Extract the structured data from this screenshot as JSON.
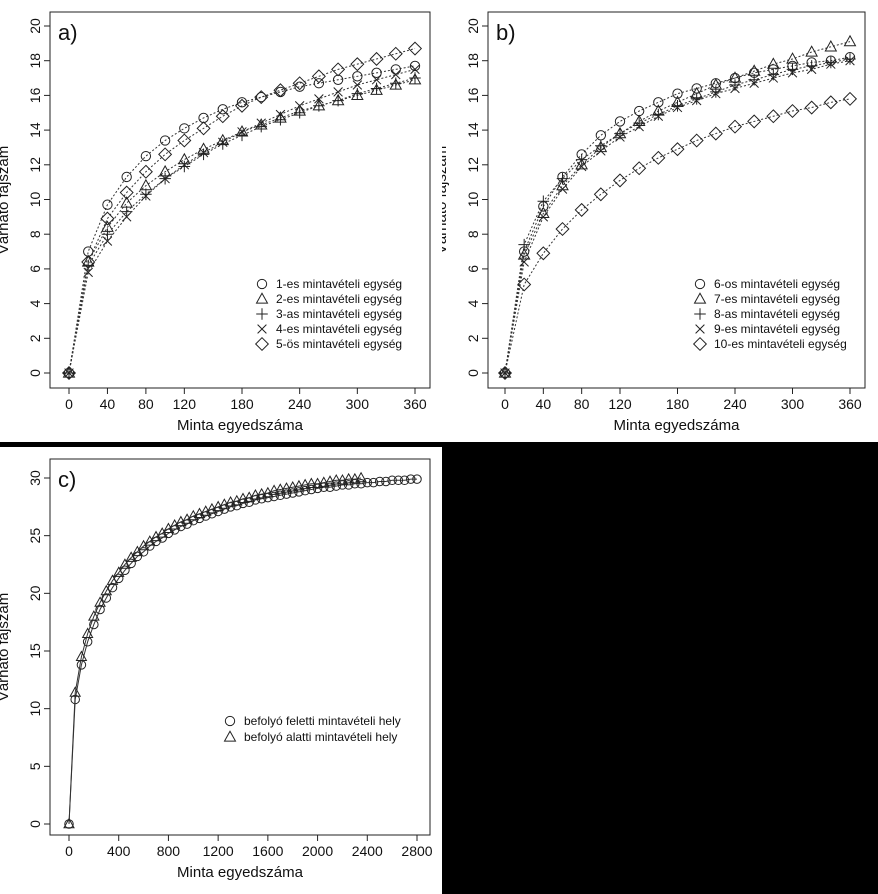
{
  "chart_data": [
    {
      "type": "scatter",
      "panel_label": "a)",
      "xlabel": "Minta egyedszáma",
      "ylabel": "Várható fajszám",
      "xlim": [
        0,
        360
      ],
      "ylim": [
        0,
        20
      ],
      "xticks": [
        0,
        40,
        80,
        120,
        180,
        240,
        300,
        360
      ],
      "yticks": [
        0,
        2,
        4,
        6,
        8,
        10,
        12,
        14,
        16,
        18,
        20
      ],
      "grid": false,
      "legend_position": "bottom-right",
      "x": [
        0,
        20,
        40,
        60,
        80,
        100,
        120,
        140,
        160,
        180,
        200,
        220,
        240,
        260,
        280,
        300,
        320,
        340,
        360
      ],
      "series": [
        {
          "name": "1-es mintavételi egység",
          "marker": "circle",
          "values": [
            0,
            7.0,
            9.7,
            11.3,
            12.5,
            13.4,
            14.1,
            14.7,
            15.2,
            15.6,
            15.9,
            16.2,
            16.5,
            16.7,
            16.9,
            17.1,
            17.3,
            17.5,
            17.7
          ]
        },
        {
          "name": "2-es mintavételi egység",
          "marker": "triangle",
          "values": [
            0,
            6.4,
            8.4,
            9.8,
            10.8,
            11.6,
            12.3,
            12.9,
            13.4,
            13.9,
            14.3,
            14.7,
            15.1,
            15.4,
            15.7,
            16.0,
            16.3,
            16.6,
            16.9
          ]
        },
        {
          "name": "3-as mintavételi egység",
          "marker": "plus",
          "values": [
            0,
            6.2,
            8.0,
            9.3,
            10.3,
            11.2,
            11.9,
            12.6,
            13.2,
            13.7,
            14.2,
            14.6,
            15.0,
            15.4,
            15.7,
            16.1,
            16.4,
            16.7,
            17.0
          ]
        },
        {
          "name": "4-es mintavételi egység",
          "marker": "cross",
          "values": [
            0,
            5.8,
            7.6,
            9.0,
            10.2,
            11.2,
            12.0,
            12.7,
            13.3,
            13.9,
            14.4,
            14.9,
            15.4,
            15.8,
            16.2,
            16.6,
            16.9,
            17.2,
            17.5
          ]
        },
        {
          "name": "5-ös mintavételi egység",
          "marker": "diamond",
          "values": [
            0,
            6.4,
            8.9,
            10.4,
            11.6,
            12.6,
            13.4,
            14.1,
            14.8,
            15.4,
            15.9,
            16.3,
            16.7,
            17.1,
            17.5,
            17.8,
            18.1,
            18.4,
            18.7
          ]
        }
      ]
    },
    {
      "type": "scatter",
      "panel_label": "b)",
      "xlabel": "Minta egyedszáma",
      "ylabel": "Várható fajszám",
      "xlim": [
        0,
        360
      ],
      "ylim": [
        0,
        20
      ],
      "xticks": [
        0,
        40,
        80,
        120,
        180,
        240,
        300,
        360
      ],
      "yticks": [
        0,
        2,
        4,
        6,
        8,
        10,
        12,
        14,
        16,
        18,
        20
      ],
      "grid": false,
      "legend_position": "bottom-right",
      "x": [
        0,
        20,
        40,
        60,
        80,
        100,
        120,
        140,
        160,
        180,
        200,
        220,
        240,
        260,
        280,
        300,
        320,
        340,
        360
      ],
      "series": [
        {
          "name": "6-os mintavételi egység",
          "marker": "circle",
          "values": [
            0,
            7.0,
            9.6,
            11.3,
            12.6,
            13.7,
            14.5,
            15.1,
            15.6,
            16.1,
            16.4,
            16.7,
            17.0,
            17.3,
            17.5,
            17.7,
            17.9,
            18.0,
            18.2
          ]
        },
        {
          "name": "7-es mintavételi egység",
          "marker": "triangle",
          "values": [
            0,
            6.8,
            9.2,
            10.8,
            12.0,
            13.0,
            13.8,
            14.5,
            15.1,
            15.6,
            16.1,
            16.6,
            17.0,
            17.4,
            17.8,
            18.1,
            18.5,
            18.8,
            19.1
          ]
        },
        {
          "name": "8-as mintavételi egység",
          "marker": "plus",
          "values": [
            0,
            7.4,
            9.9,
            11.2,
            12.3,
            13.1,
            13.8,
            14.4,
            14.9,
            15.4,
            15.8,
            16.2,
            16.6,
            16.9,
            17.2,
            17.5,
            17.7,
            17.9,
            18.1
          ]
        },
        {
          "name": "9-es mintavételi egység",
          "marker": "cross",
          "values": [
            0,
            6.4,
            9.0,
            10.6,
            11.9,
            12.8,
            13.6,
            14.2,
            14.8,
            15.3,
            15.7,
            16.1,
            16.4,
            16.7,
            17.0,
            17.3,
            17.5,
            17.8,
            18.0
          ]
        },
        {
          "name": "10-es mintavételi egység",
          "marker": "diamond",
          "values": [
            0,
            5.1,
            6.9,
            8.3,
            9.4,
            10.3,
            11.1,
            11.8,
            12.4,
            12.9,
            13.4,
            13.8,
            14.2,
            14.5,
            14.8,
            15.1,
            15.3,
            15.6,
            15.8
          ]
        }
      ]
    },
    {
      "type": "scatter",
      "panel_label": "c)",
      "xlabel": "Minta egyedszáma",
      "ylabel": "Várható fajszám",
      "xlim": [
        0,
        2800
      ],
      "ylim": [
        0,
        30
      ],
      "xticks": [
        0,
        400,
        800,
        1200,
        1600,
        2000,
        2400,
        2800
      ],
      "yticks": [
        0,
        5,
        10,
        15,
        20,
        25,
        30
      ],
      "grid": false,
      "legend_position": "bottom-right",
      "series": [
        {
          "name": "befolyó feletti mintavételi hely",
          "marker": "circle",
          "x_start": 0,
          "x_step": 50,
          "x_max": 2800,
          "values": [
            0,
            10.8,
            13.8,
            15.8,
            17.3,
            18.6,
            19.6,
            20.5,
            21.3,
            22.0,
            22.6,
            23.2,
            23.6,
            24.1,
            24.5,
            24.8,
            25.2,
            25.5,
            25.8,
            26.0,
            26.3,
            26.5,
            26.7,
            26.9,
            27.1,
            27.3,
            27.5,
            27.6,
            27.8,
            27.9,
            28.1,
            28.2,
            28.3,
            28.4,
            28.5,
            28.6,
            28.7,
            28.8,
            28.9,
            29.0,
            29.1,
            29.2,
            29.2,
            29.3,
            29.4,
            29.4,
            29.5,
            29.5,
            29.6,
            29.6,
            29.7,
            29.7,
            29.8,
            29.8,
            29.8,
            29.9,
            29.9
          ]
        },
        {
          "name": "befolyó alatti mintavételi hely",
          "marker": "triangle",
          "x_start": 0,
          "x_step": 50,
          "x_max": 2350,
          "values": [
            0,
            11.4,
            14.5,
            16.5,
            18.0,
            19.2,
            20.2,
            21.1,
            21.8,
            22.5,
            23.1,
            23.6,
            24.1,
            24.5,
            24.9,
            25.2,
            25.6,
            25.9,
            26.2,
            26.4,
            26.7,
            26.9,
            27.1,
            27.3,
            27.5,
            27.7,
            27.9,
            28.0,
            28.2,
            28.3,
            28.5,
            28.6,
            28.7,
            28.9,
            29.0,
            29.1,
            29.2,
            29.3,
            29.4,
            29.5,
            29.5,
            29.6,
            29.7,
            29.8,
            29.8,
            29.9,
            29.9,
            30.0
          ]
        }
      ]
    }
  ]
}
